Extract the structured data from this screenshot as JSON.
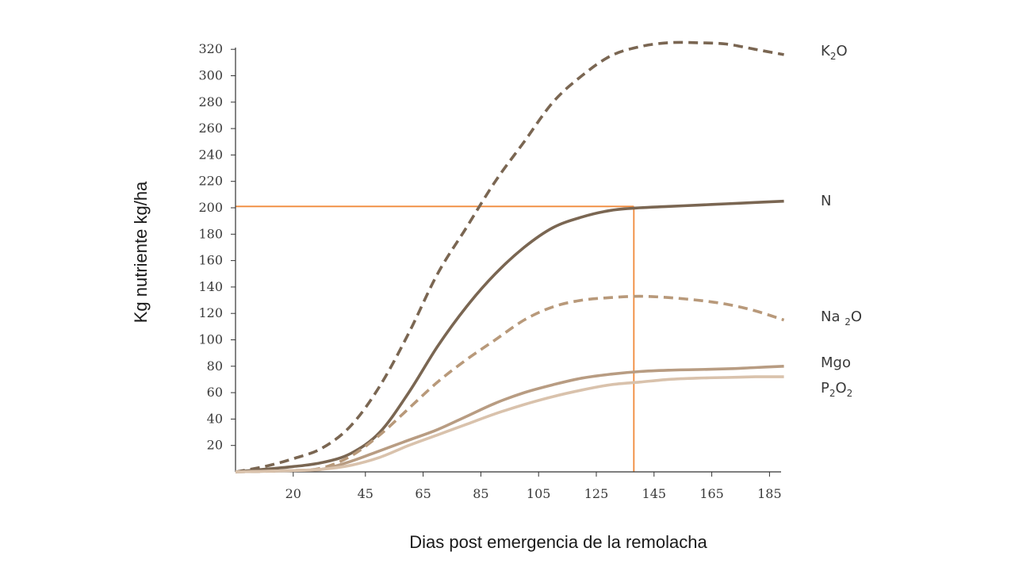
{
  "chart_data": {
    "type": "line",
    "title": "",
    "xlabel": "Dias post emergencia de la remolacha",
    "ylabel": "Kg nutriente kg/ha",
    "xlim": [
      0,
      190
    ],
    "ylim": [
      0,
      320
    ],
    "x_ticks": [
      20,
      45,
      65,
      85,
      105,
      125,
      145,
      165,
      185
    ],
    "y_ticks": [
      20,
      40,
      60,
      80,
      100,
      120,
      140,
      160,
      180,
      200,
      220,
      240,
      260,
      280,
      300,
      320
    ],
    "grid": false,
    "legend": "inline labels at right end of lines",
    "series": [
      {
        "name": "K2O",
        "label_main": "K",
        "label_sub": "2",
        "label_tail": "O",
        "style": "dashed",
        "color": "#7a6652",
        "points": [
          [
            0,
            0
          ],
          [
            10,
            4
          ],
          [
            20,
            10
          ],
          [
            30,
            18
          ],
          [
            40,
            35
          ],
          [
            50,
            65
          ],
          [
            60,
            105
          ],
          [
            70,
            150
          ],
          [
            80,
            185
          ],
          [
            90,
            220
          ],
          [
            100,
            250
          ],
          [
            110,
            280
          ],
          [
            120,
            300
          ],
          [
            130,
            315
          ],
          [
            140,
            322
          ],
          [
            150,
            325
          ],
          [
            160,
            325
          ],
          [
            170,
            324
          ],
          [
            180,
            320
          ],
          [
            190,
            316
          ]
        ]
      },
      {
        "name": "N",
        "label_main": "N",
        "label_sub": "",
        "label_tail": "",
        "style": "solid",
        "color": "#7a6652",
        "points": [
          [
            0,
            0
          ],
          [
            10,
            2
          ],
          [
            20,
            4
          ],
          [
            30,
            7
          ],
          [
            40,
            14
          ],
          [
            50,
            30
          ],
          [
            60,
            60
          ],
          [
            70,
            95
          ],
          [
            80,
            125
          ],
          [
            90,
            150
          ],
          [
            100,
            170
          ],
          [
            110,
            185
          ],
          [
            120,
            193
          ],
          [
            130,
            198
          ],
          [
            140,
            200
          ],
          [
            150,
            201
          ],
          [
            160,
            202
          ],
          [
            170,
            203
          ],
          [
            180,
            204
          ],
          [
            190,
            205
          ]
        ]
      },
      {
        "name": "Na2O",
        "label_main": "Na ",
        "label_sub": "2",
        "label_tail": "O",
        "style": "dashed",
        "color": "#b8997a",
        "points": [
          [
            0,
            0
          ],
          [
            20,
            1
          ],
          [
            30,
            3
          ],
          [
            40,
            12
          ],
          [
            50,
            28
          ],
          [
            60,
            48
          ],
          [
            70,
            68
          ],
          [
            80,
            85
          ],
          [
            90,
            100
          ],
          [
            100,
            115
          ],
          [
            110,
            125
          ],
          [
            120,
            130
          ],
          [
            130,
            132
          ],
          [
            140,
            133
          ],
          [
            150,
            132
          ],
          [
            160,
            130
          ],
          [
            170,
            127
          ],
          [
            180,
            122
          ],
          [
            190,
            115
          ]
        ]
      },
      {
        "name": "Mgo",
        "label_main": "Mgo",
        "label_sub": "",
        "label_tail": "",
        "style": "solid",
        "color": "#b89c82",
        "points": [
          [
            0,
            0
          ],
          [
            20,
            1
          ],
          [
            30,
            2
          ],
          [
            40,
            8
          ],
          [
            50,
            16
          ],
          [
            60,
            24
          ],
          [
            70,
            32
          ],
          [
            80,
            42
          ],
          [
            90,
            52
          ],
          [
            100,
            60
          ],
          [
            110,
            66
          ],
          [
            120,
            71
          ],
          [
            130,
            74
          ],
          [
            140,
            76
          ],
          [
            150,
            77
          ],
          [
            160,
            77.5
          ],
          [
            170,
            78
          ],
          [
            180,
            79
          ],
          [
            190,
            80
          ]
        ]
      },
      {
        "name": "P2O2",
        "label_main": "P",
        "label_sub": "2",
        "label_tail": "O",
        "label_sub2": "2",
        "style": "solid",
        "color": "#d9c2ac",
        "points": [
          [
            0,
            0
          ],
          [
            20,
            1
          ],
          [
            30,
            2
          ],
          [
            40,
            5
          ],
          [
            50,
            11
          ],
          [
            60,
            20
          ],
          [
            70,
            28
          ],
          [
            80,
            36
          ],
          [
            90,
            44
          ],
          [
            100,
            51
          ],
          [
            110,
            57
          ],
          [
            120,
            62
          ],
          [
            130,
            66
          ],
          [
            140,
            68
          ],
          [
            150,
            70
          ],
          [
            160,
            71
          ],
          [
            170,
            71.5
          ],
          [
            180,
            72
          ],
          [
            190,
            72
          ]
        ]
      }
    ],
    "reference": {
      "color": "#f08a3c",
      "x": 138,
      "y": 201
    }
  }
}
